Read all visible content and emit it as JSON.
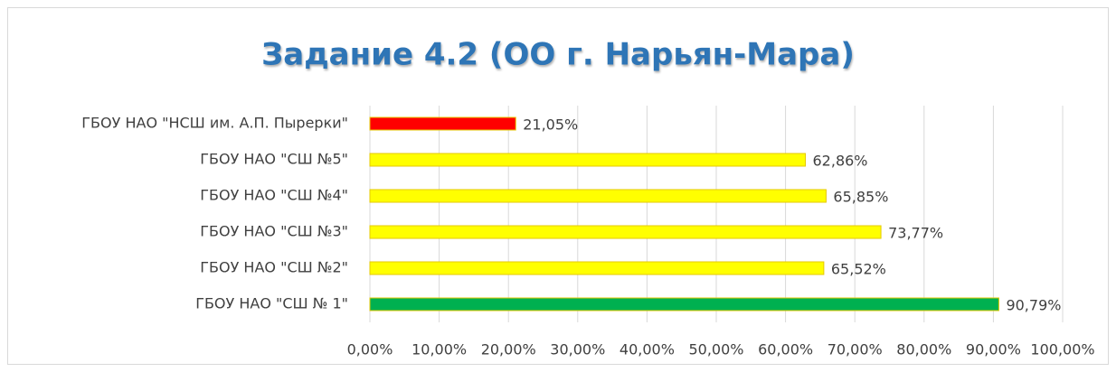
{
  "chart_data": {
    "type": "bar",
    "orientation": "horizontal",
    "title": "Задание  4.2  (ОО г. Нарьян-Мара)",
    "categories": [
      "ГБОУ НАО \"НСШ им. А.П. Пырерки\"",
      "ГБОУ НАО \"СШ №5\"",
      "ГБОУ НАО \"СШ №4\"",
      "ГБОУ НАО \"СШ №3\"",
      "ГБОУ НАО \"СШ №2\"",
      "ГБОУ НАО \"СШ № 1\""
    ],
    "values": [
      21.05,
      62.86,
      65.85,
      73.77,
      65.52,
      90.79
    ],
    "value_labels": [
      "21,05%",
      "62,86%",
      "65,85%",
      "73,77%",
      "65,52%",
      "90,79%"
    ],
    "colors": [
      "#FF0000",
      "#FFFF00",
      "#FFFF00",
      "#FFFF00",
      "#FFFF00",
      "#00B050"
    ],
    "xlim": [
      0,
      100
    ],
    "xticks": [
      {
        "value": 0,
        "label": "0,00%"
      },
      {
        "value": 10,
        "label": "10,00%"
      },
      {
        "value": 20,
        "label": "20,00%"
      },
      {
        "value": 30,
        "label": "30,00%"
      },
      {
        "value": 40,
        "label": "40,00%"
      },
      {
        "value": 50,
        "label": "50,00%"
      },
      {
        "value": 60,
        "label": "60,00%"
      },
      {
        "value": 70,
        "label": "70,00%"
      },
      {
        "value": 80,
        "label": "80,00%"
      },
      {
        "value": 90,
        "label": "90,00%"
      },
      {
        "value": 100,
        "label": "100,00%"
      }
    ],
    "grid": true
  }
}
